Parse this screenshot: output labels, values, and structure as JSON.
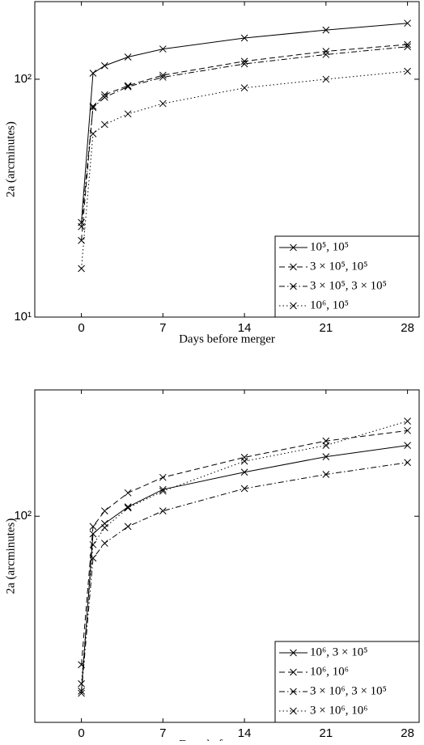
{
  "chart_data": [
    {
      "type": "line",
      "ylabel": "2a (arcminutes)",
      "xlabel": "Days before merger",
      "log_y": true,
      "legend": "lower right",
      "x": [
        0,
        1,
        2,
        4,
        7,
        14,
        21,
        28
      ],
      "xlim": [
        -4,
        29
      ],
      "xticks": [
        0,
        7,
        14,
        21,
        28
      ],
      "ylim": [
        10,
        212
      ],
      "yticks": [
        {
          "value": 10,
          "label": "10¹"
        },
        {
          "value": 100,
          "label": "10²"
        }
      ],
      "series": [
        {
          "name": "10⁵, 10⁵",
          "color": "#000000",
          "dash": "solid",
          "values": [
            25,
            106,
            114,
            124,
            134,
            149,
            161,
            172
          ]
        },
        {
          "name": "3 × 10⁵, 10⁵",
          "color": "#000000",
          "dash": "dashed",
          "values": [
            21,
            77,
            86,
            94,
            104,
            119,
            131,
            140
          ]
        },
        {
          "name": "3 × 10⁵, 3 × 10⁵",
          "color": "#000000",
          "dash": "dashdot",
          "values": [
            24,
            76,
            84,
            93,
            102,
            116,
            127,
            137
          ]
        },
        {
          "name": "10⁶, 10⁵",
          "color": "#000000",
          "dash": "dotted",
          "values": [
            16,
            59,
            64.5,
            71.5,
            79,
            92,
            100,
            108
          ]
        }
      ]
    },
    {
      "type": "line",
      "ylabel": "2a (arcminutes)",
      "xlabel": "Days before merger",
      "log_y": true,
      "legend": "lower right",
      "x": [
        0,
        1,
        2,
        4,
        7,
        14,
        21,
        28
      ],
      "xlim": [
        -4,
        29
      ],
      "xticks": [
        0,
        7,
        14,
        21,
        28
      ],
      "ylim": [
        15,
        320
      ],
      "yticks": [
        {
          "value": 100,
          "label": "10²"
        }
      ],
      "series": [
        {
          "name": "10⁶, 3 × 10⁵",
          "color": "#000000",
          "dash": "solid",
          "values": [
            20,
            85,
            93.5,
            109,
            128,
            150,
            173,
            192
          ]
        },
        {
          "name": "10⁶, 10⁶",
          "color": "#000000",
          "dash": "dashed",
          "values": [
            25.5,
            91,
            105,
            124,
            143,
            172,
            200,
            220
          ]
        },
        {
          "name": "3 × 10⁶, 3 × 10⁵",
          "color": "#000000",
          "dash": "dashdot",
          "values": [
            19.6,
            68,
            78,
            91,
            105,
            129,
            147,
            164
          ]
        },
        {
          "name": "3 × 10⁶, 10⁶",
          "color": "#000000",
          "dash": "dotted",
          "values": [
            21.4,
            77,
            90,
            108,
            126,
            166,
            192,
            240
          ]
        }
      ]
    }
  ]
}
